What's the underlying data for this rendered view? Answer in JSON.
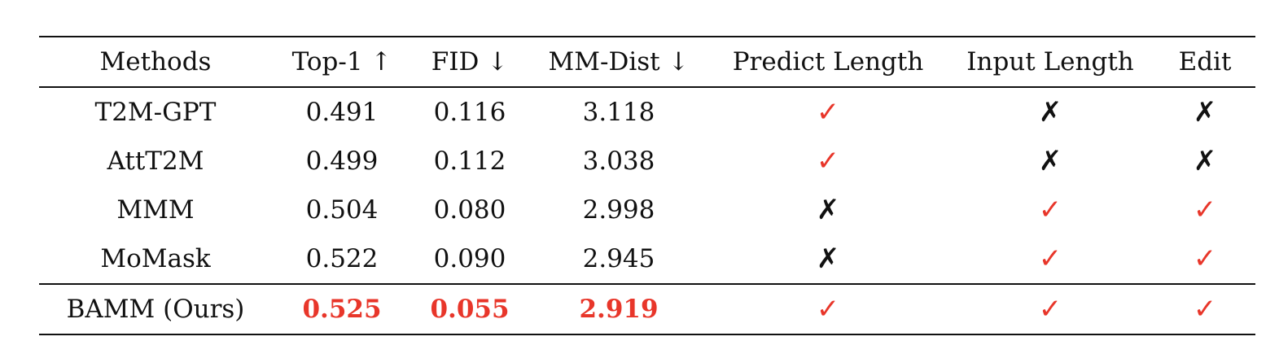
{
  "table": {
    "headers": [
      "Methods",
      "Top-1 ↑",
      "FID ↓",
      "MM-Dist ↓",
      "Predict Length",
      "Input Length",
      "Edit"
    ],
    "rows": [
      {
        "method": "T2M-GPT",
        "top1": "0.491",
        "fid": "0.116",
        "mmdist": "3.118",
        "predict_length": "✓",
        "input_length": "✗",
        "edit": "✗"
      },
      {
        "method": "AttT2M",
        "top1": "0.499",
        "fid": "0.112",
        "mmdist": "3.038",
        "predict_length": "✓",
        "input_length": "✗",
        "edit": "✗"
      },
      {
        "method": "MMM",
        "top1": "0.504",
        "fid": "0.080",
        "mmdist": "2.998",
        "predict_length": "✗",
        "input_length": "✓",
        "edit": "✓"
      },
      {
        "method": "MoMask",
        "top1": "0.522",
        "fid": "0.090",
        "mmdist": "2.945",
        "predict_length": "✗",
        "input_length": "✓",
        "edit": "✓"
      },
      {
        "method": "BAMM (Ours)",
        "top1": "0.525",
        "fid": "0.055",
        "mmdist": "2.919",
        "predict_length": "✓",
        "input_length": "✓",
        "edit": "✓"
      }
    ],
    "highlight_color": "#e8362a",
    "check_color": "#e8362a",
    "cross_color": "#111111"
  }
}
